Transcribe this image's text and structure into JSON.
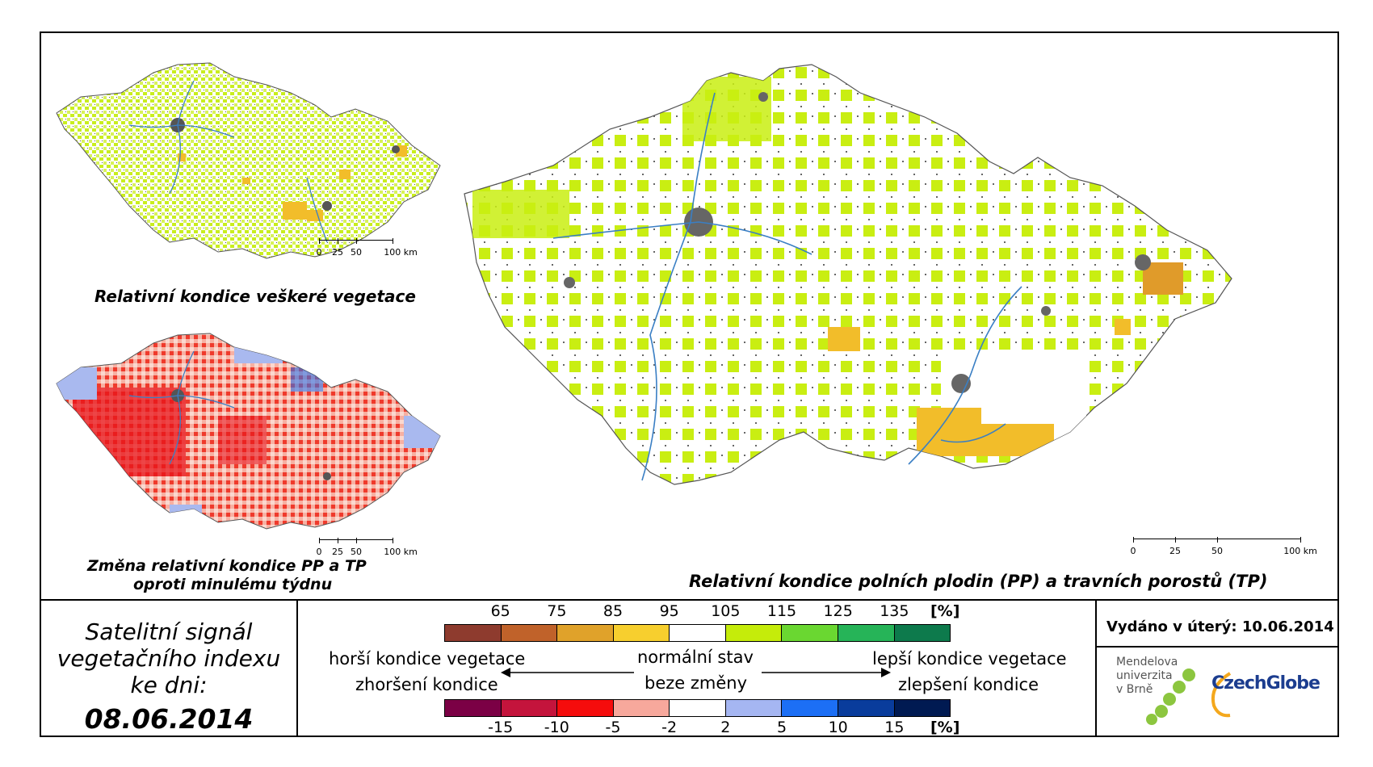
{
  "maps": {
    "small_top_title": "Relativní kondice veškeré vegetace",
    "small_bottom_title_1": "Změna relativní kondice PP a TP",
    "small_bottom_title_2": "oproti minulému týdnu",
    "main_title": "Relativní kondice polních plodin (PP) a travních porostů (TP)",
    "small_scale_labels": [
      "0",
      "25",
      "50",
      "100 km"
    ],
    "main_scale_labels": [
      "0",
      "25",
      "50",
      "100 km"
    ]
  },
  "date_box": {
    "line1": "Satelitní signál",
    "line2": "vegetačního indexu",
    "line3": "ke dni:",
    "date": "08.06.2014"
  },
  "legend": {
    "top_values": [
      "65",
      "75",
      "85",
      "95",
      "105",
      "115",
      "125",
      "135"
    ],
    "top_unit": "[%]",
    "top_colors": [
      "#8e3b2e",
      "#c0622a",
      "#e0a22a",
      "#f7cf2e",
      "#ffffff",
      "#c5ec0a",
      "#6ad731",
      "#26b458",
      "#0d7a4c"
    ],
    "worse_text": "horší kondice vegetace",
    "worse_change_text": "zhoršení kondice",
    "normal_text": "normální stav",
    "nochange_text": "beze změny",
    "better_text": "lepší kondice vegetace",
    "better_change_text": "zlepšení kondice",
    "bottom_values": [
      "-15",
      "-10",
      "-5",
      "-2",
      "2",
      "5",
      "10",
      "15"
    ],
    "bottom_unit": "[%]",
    "bottom_colors": [
      "#7b0045",
      "#c4143c",
      "#f50c0c",
      "#f7a89c",
      "#ffffff",
      "#a5b6f2",
      "#1c6ff5",
      "#093c9c",
      "#001a52"
    ]
  },
  "issued": "Vydáno v úterý: 10.06.2014",
  "logos": {
    "mendel_line1": "Mendelova",
    "mendel_line2": "univerzita",
    "mendel_line3": "v Brně",
    "czechglobe": "CzechGlobe"
  }
}
